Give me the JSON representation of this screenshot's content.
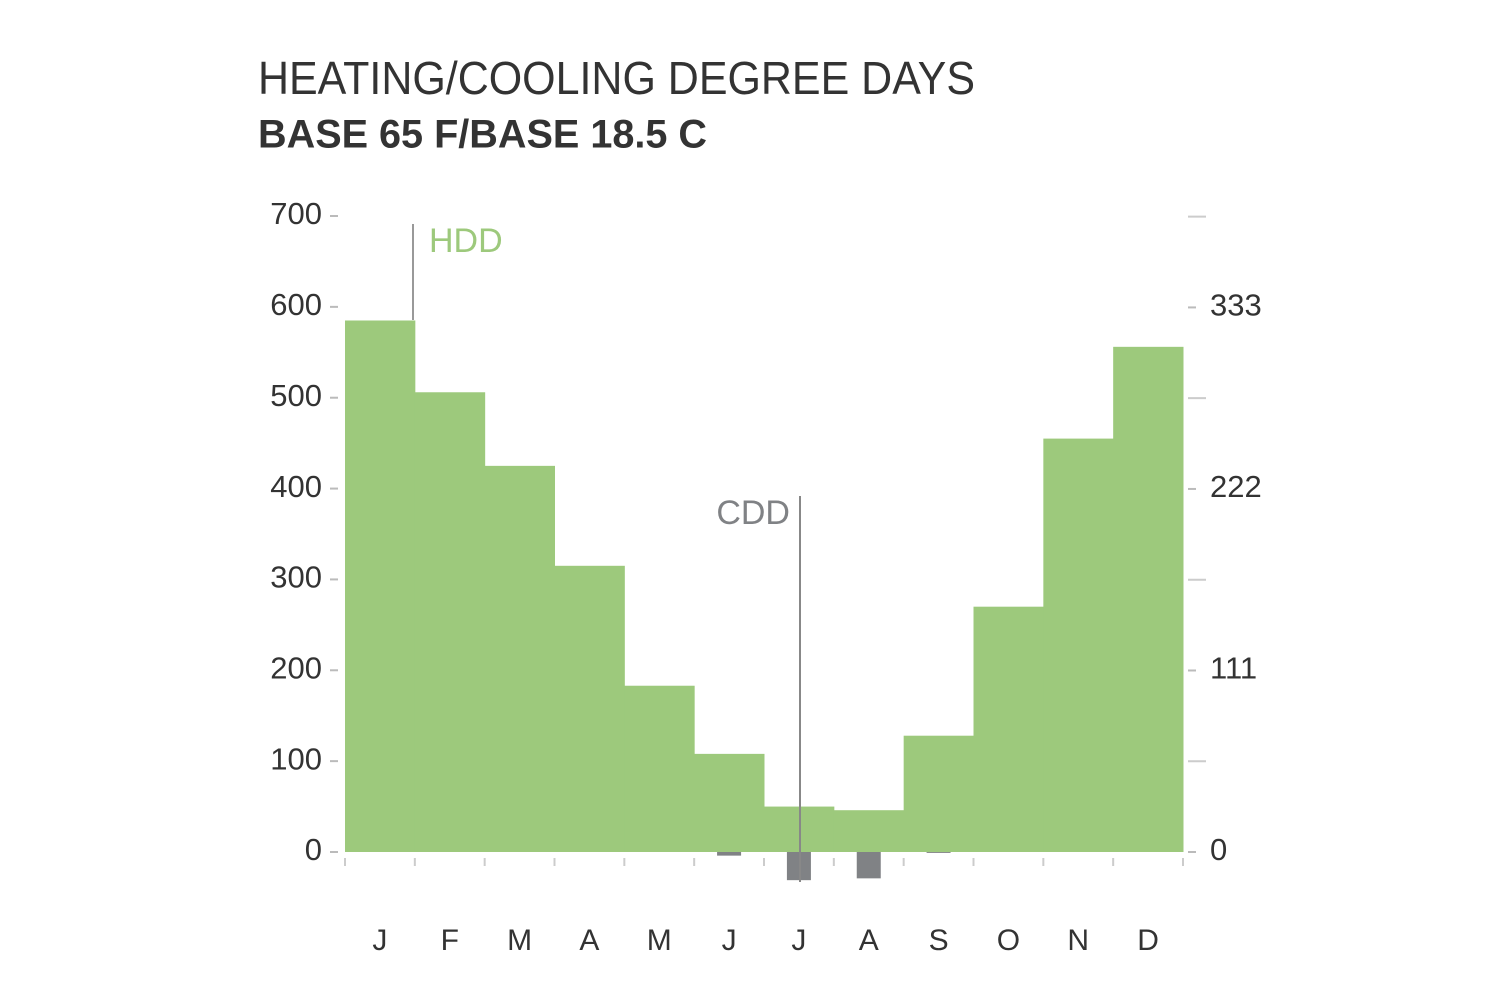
{
  "chart_data": {
    "type": "bar",
    "title": "HEATING/COOLING DEGREE DAYS",
    "subtitle": "BASE 65 F/BASE 18.5 C",
    "categories": [
      "J",
      "F",
      "M",
      "A",
      "M",
      "J",
      "J",
      "A",
      "S",
      "O",
      "N",
      "D"
    ],
    "series": [
      {
        "name": "HDD",
        "color": "#9dc97c",
        "values": [
          585,
          506,
          425,
          315,
          183,
          108,
          50,
          46,
          128,
          270,
          455,
          556
        ]
      },
      {
        "name": "CDD",
        "color": "#808285",
        "downward": true,
        "values": [
          0,
          0,
          0,
          0,
          0,
          4,
          31,
          29,
          1,
          0,
          0,
          0
        ]
      }
    ],
    "ylim": [
      0,
      700
    ],
    "yticks": [
      0,
      100,
      200,
      300,
      400,
      500,
      600,
      700
    ],
    "y2lim": [
      0,
      388.9
    ],
    "y2ticks": [
      0,
      111,
      222,
      333
    ],
    "y2minor_ticks": [
      55.5,
      166.5,
      277.5,
      388.5
    ]
  }
}
